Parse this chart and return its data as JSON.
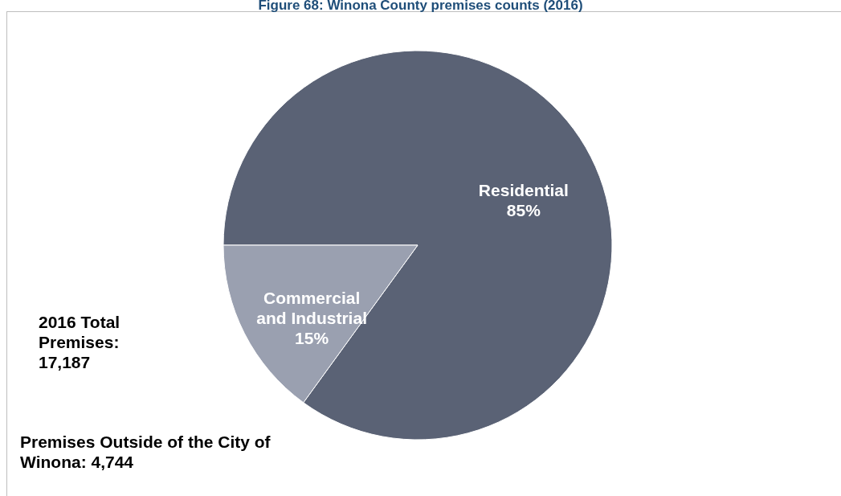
{
  "chart_data": {
    "type": "pie",
    "title": "Figure 68: Winona County premises counts (2016)",
    "categories": [
      "Residential",
      "Commercial and Industrial"
    ],
    "values": [
      85,
      15
    ],
    "colors": [
      "#5a6275",
      "#9aa0b0"
    ],
    "value_labels": [
      "85%",
      "15%"
    ],
    "annotations": [
      "2016 Total Premises: 17,187",
      "Premises Outside  of the City of Winona: 4,744"
    ]
  }
}
